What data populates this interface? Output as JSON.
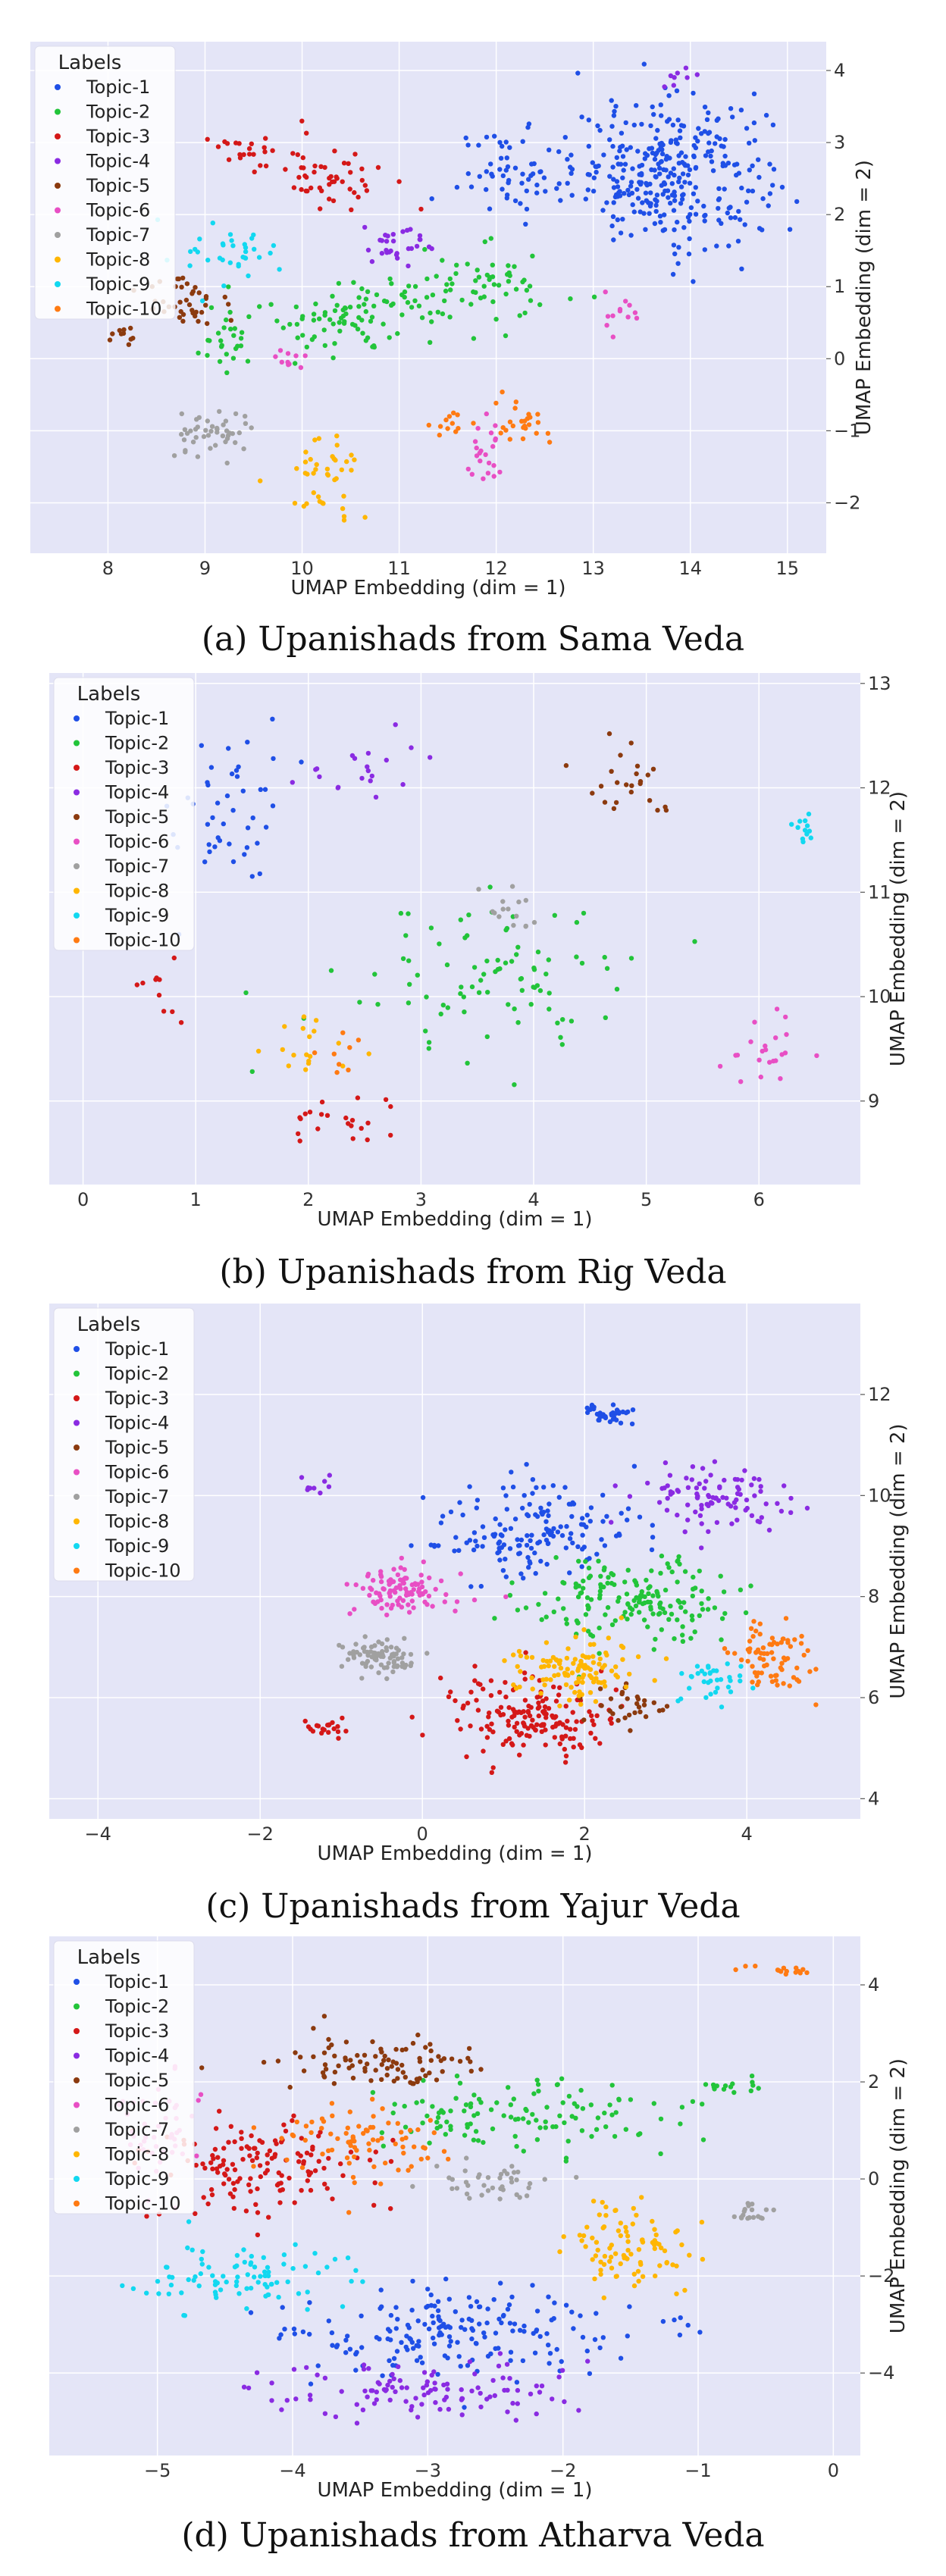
{
  "topic_colors": [
    "#1f4fe6",
    "#22c43a",
    "#d41818",
    "#8a2be2",
    "#8b3a0f",
    "#e84fc4",
    "#a0a0a0",
    "#ffb600",
    "#12d8f0",
    "#ff7a12"
  ],
  "chart_data": [
    {
      "type": "scatter",
      "xlabel": "UMAP Embedding (dim = 1)",
      "ylabel": "UMAP Embedding (dim = 2)",
      "xlim": [
        7.2,
        15.4
      ],
      "ylim": [
        -2.7,
        4.4
      ],
      "xticks": [
        8,
        9,
        10,
        11,
        12,
        13,
        14,
        15
      ],
      "yticks": [
        -2,
        -1,
        0,
        1,
        2,
        3,
        4
      ],
      "legend_title": "Labels",
      "legend": [
        "Topic-1",
        "Topic-2",
        "Topic-3",
        "Topic-4",
        "Topic-5",
        "Topic-6",
        "Topic-7",
        "Topic-8",
        "Topic-9",
        "Topic-10"
      ],
      "legend_position": "top-left",
      "grid": true,
      "clusters": [
        {
          "topic": 1,
          "cx": 13.8,
          "cy": 2.6,
          "rx": 1.0,
          "ry": 1.0,
          "n": 320
        },
        {
          "topic": 1,
          "cx": 12.2,
          "cy": 2.6,
          "rx": 0.6,
          "ry": 0.6,
          "n": 60
        },
        {
          "topic": 2,
          "cx": 11.8,
          "cy": 0.9,
          "rx": 0.9,
          "ry": 0.6,
          "n": 70
        },
        {
          "topic": 2,
          "cx": 10.4,
          "cy": 0.6,
          "rx": 0.8,
          "ry": 0.6,
          "n": 80
        },
        {
          "topic": 2,
          "cx": 9.2,
          "cy": 0.3,
          "rx": 0.4,
          "ry": 0.4,
          "n": 25
        },
        {
          "topic": 3,
          "cx": 10.2,
          "cy": 2.6,
          "rx": 0.7,
          "ry": 0.5,
          "n": 55
        },
        {
          "topic": 3,
          "cx": 9.3,
          "cy": 2.9,
          "rx": 0.3,
          "ry": 0.2,
          "n": 15
        },
        {
          "topic": 4,
          "cx": 11.0,
          "cy": 1.6,
          "rx": 0.4,
          "ry": 0.3,
          "n": 30
        },
        {
          "topic": 4,
          "cx": 13.9,
          "cy": 3.9,
          "rx": 0.3,
          "ry": 0.2,
          "n": 8
        },
        {
          "topic": 5,
          "cx": 8.8,
          "cy": 0.8,
          "rx": 0.5,
          "ry": 0.4,
          "n": 40
        },
        {
          "topic": 5,
          "cx": 8.2,
          "cy": 0.3,
          "rx": 0.2,
          "ry": 0.2,
          "n": 10
        },
        {
          "topic": 6,
          "cx": 11.9,
          "cy": -1.4,
          "rx": 0.2,
          "ry": 0.4,
          "n": 22
        },
        {
          "topic": 6,
          "cx": 13.3,
          "cy": 0.6,
          "rx": 0.2,
          "ry": 0.3,
          "n": 12
        },
        {
          "topic": 6,
          "cx": 9.8,
          "cy": 0.0,
          "rx": 0.3,
          "ry": 0.2,
          "n": 10
        },
        {
          "topic": 7,
          "cx": 9.1,
          "cy": -1.1,
          "rx": 0.4,
          "ry": 0.4,
          "n": 45
        },
        {
          "topic": 8,
          "cx": 10.2,
          "cy": -1.6,
          "rx": 0.4,
          "ry": 0.6,
          "n": 40
        },
        {
          "topic": 9,
          "cx": 9.3,
          "cy": 1.4,
          "rx": 0.5,
          "ry": 0.4,
          "n": 35
        },
        {
          "topic": 10,
          "cx": 12.3,
          "cy": -0.9,
          "rx": 0.3,
          "ry": 0.3,
          "n": 25
        },
        {
          "topic": 10,
          "cx": 11.5,
          "cy": -0.9,
          "rx": 0.2,
          "ry": 0.2,
          "n": 12
        }
      ]
    },
    {
      "type": "scatter",
      "xlabel": "UMAP Embedding (dim = 1)",
      "ylabel": "UMAP Embedding (dim = 2)",
      "xlim": [
        -0.3,
        6.9
      ],
      "ylim": [
        8.2,
        13.1
      ],
      "xticks": [
        0,
        1,
        2,
        3,
        4,
        5,
        6
      ],
      "yticks": [
        9,
        10,
        11,
        12,
        13
      ],
      "legend_title": "Labels",
      "legend": [
        "Topic-1",
        "Topic-2",
        "Topic-3",
        "Topic-4",
        "Topic-5",
        "Topic-6",
        "Topic-7",
        "Topic-8",
        "Topic-9",
        "Topic-10"
      ],
      "legend_position": "top-left",
      "grid": true,
      "clusters": [
        {
          "topic": 1,
          "cx": 1.3,
          "cy": 11.8,
          "rx": 0.5,
          "ry": 0.8,
          "n": 45
        },
        {
          "topic": 2,
          "cx": 3.6,
          "cy": 10.2,
          "rx": 1.3,
          "ry": 0.8,
          "n": 90
        },
        {
          "topic": 3,
          "cx": 2.3,
          "cy": 8.8,
          "rx": 0.5,
          "ry": 0.3,
          "n": 22
        },
        {
          "topic": 3,
          "cx": 0.7,
          "cy": 10.0,
          "rx": 0.2,
          "ry": 0.3,
          "n": 10
        },
        {
          "topic": 4,
          "cx": 2.4,
          "cy": 12.2,
          "rx": 0.6,
          "ry": 0.3,
          "n": 20
        },
        {
          "topic": 5,
          "cx": 4.8,
          "cy": 12.1,
          "rx": 0.5,
          "ry": 0.4,
          "n": 24
        },
        {
          "topic": 6,
          "cx": 6.1,
          "cy": 9.5,
          "rx": 0.4,
          "ry": 0.4,
          "n": 22
        },
        {
          "topic": 7,
          "cx": 3.7,
          "cy": 10.8,
          "rx": 0.4,
          "ry": 0.3,
          "n": 15
        },
        {
          "topic": 8,
          "cx": 2.0,
          "cy": 9.5,
          "rx": 0.4,
          "ry": 0.4,
          "n": 18
        },
        {
          "topic": 9,
          "cx": 6.4,
          "cy": 11.6,
          "rx": 0.2,
          "ry": 0.15,
          "n": 12
        },
        {
          "topic": 10,
          "cx": 2.3,
          "cy": 9.4,
          "rx": 0.3,
          "ry": 0.3,
          "n": 8
        }
      ]
    },
    {
      "type": "scatter",
      "xlabel": "UMAP Embedding (dim = 1)",
      "ylabel": "UMAP Embedding (dim = 2)",
      "xlim": [
        -4.6,
        5.4
      ],
      "ylim": [
        3.6,
        13.8
      ],
      "xticks": [
        -4,
        -2,
        0,
        2,
        4
      ],
      "yticks": [
        4,
        6,
        8,
        10,
        12
      ],
      "legend_title": "Labels",
      "legend": [
        "Topic-1",
        "Topic-2",
        "Topic-3",
        "Topic-4",
        "Topic-5",
        "Topic-6",
        "Topic-7",
        "Topic-8",
        "Topic-9",
        "Topic-10"
      ],
      "legend_position": "top-left",
      "grid": true,
      "clusters": [
        {
          "topic": 1,
          "cx": 1.4,
          "cy": 9.3,
          "rx": 1.3,
          "ry": 1.0,
          "n": 160
        },
        {
          "topic": 1,
          "cx": 2.3,
          "cy": 11.6,
          "rx": 0.3,
          "ry": 0.2,
          "n": 35
        },
        {
          "topic": 2,
          "cx": 2.6,
          "cy": 7.9,
          "rx": 1.3,
          "ry": 0.9,
          "n": 170
        },
        {
          "topic": 3,
          "cx": 1.3,
          "cy": 5.6,
          "rx": 1.0,
          "ry": 0.8,
          "n": 170
        },
        {
          "topic": 3,
          "cx": -1.2,
          "cy": 5.4,
          "rx": 0.3,
          "ry": 0.2,
          "n": 20
        },
        {
          "topic": 4,
          "cx": 3.5,
          "cy": 10.0,
          "rx": 1.0,
          "ry": 0.6,
          "n": 95
        },
        {
          "topic": 4,
          "cx": -1.4,
          "cy": 10.2,
          "rx": 0.3,
          "ry": 0.2,
          "n": 10
        },
        {
          "topic": 5,
          "cx": 2.5,
          "cy": 5.8,
          "rx": 0.5,
          "ry": 0.4,
          "n": 30
        },
        {
          "topic": 6,
          "cx": -0.2,
          "cy": 8.1,
          "rx": 0.6,
          "ry": 0.5,
          "n": 100
        },
        {
          "topic": 7,
          "cx": -0.5,
          "cy": 6.8,
          "rx": 0.5,
          "ry": 0.4,
          "n": 80
        },
        {
          "topic": 8,
          "cx": 1.9,
          "cy": 6.6,
          "rx": 0.8,
          "ry": 0.6,
          "n": 110
        },
        {
          "topic": 9,
          "cx": 3.5,
          "cy": 6.4,
          "rx": 0.4,
          "ry": 0.5,
          "n": 35
        },
        {
          "topic": 10,
          "cx": 4.3,
          "cy": 6.8,
          "rx": 0.5,
          "ry": 0.6,
          "n": 75
        }
      ]
    },
    {
      "type": "scatter",
      "xlabel": "UMAP Embedding (dim = 1)",
      "ylabel": "UMAP Embedding (dim = 2)",
      "xlim": [
        -5.8,
        0.2
      ],
      "ylim": [
        -5.7,
        5.0
      ],
      "xticks": [
        -5,
        -4,
        -3,
        -2,
        -1,
        0
      ],
      "yticks": [
        -4,
        -2,
        0,
        2,
        4
      ],
      "legend_title": "Labels",
      "legend": [
        "Topic-1",
        "Topic-2",
        "Topic-3",
        "Topic-4",
        "Topic-5",
        "Topic-6",
        "Topic-7",
        "Topic-8",
        "Topic-9",
        "Topic-10"
      ],
      "legend_position": "top-left",
      "grid": true,
      "clusters": [
        {
          "topic": 1,
          "cx": -2.8,
          "cy": -3.2,
          "rx": 1.3,
          "ry": 0.9,
          "n": 190
        },
        {
          "topic": 2,
          "cx": -2.3,
          "cy": 1.3,
          "rx": 1.1,
          "ry": 0.8,
          "n": 120
        },
        {
          "topic": 2,
          "cx": -0.8,
          "cy": 1.9,
          "rx": 0.3,
          "ry": 0.2,
          "n": 15
        },
        {
          "topic": 3,
          "cx": -4.2,
          "cy": 0.2,
          "rx": 0.8,
          "ry": 1.0,
          "n": 140
        },
        {
          "topic": 4,
          "cx": -3.1,
          "cy": -4.4,
          "rx": 1.1,
          "ry": 0.6,
          "n": 110
        },
        {
          "topic": 5,
          "cx": -3.4,
          "cy": 2.4,
          "rx": 0.8,
          "ry": 0.6,
          "n": 90
        },
        {
          "topic": 6,
          "cx": -5.0,
          "cy": 1.0,
          "rx": 0.3,
          "ry": 1.2,
          "n": 45
        },
        {
          "topic": 7,
          "cx": -2.6,
          "cy": -0.1,
          "rx": 0.5,
          "ry": 0.4,
          "n": 40
        },
        {
          "topic": 7,
          "cx": -0.6,
          "cy": -0.7,
          "rx": 0.2,
          "ry": 0.2,
          "n": 18
        },
        {
          "topic": 8,
          "cx": -1.5,
          "cy": -1.5,
          "rx": 0.5,
          "ry": 1.0,
          "n": 90
        },
        {
          "topic": 9,
          "cx": -4.5,
          "cy": -2.0,
          "rx": 0.8,
          "ry": 0.6,
          "n": 90
        },
        {
          "topic": 10,
          "cx": -3.5,
          "cy": 0.8,
          "rx": 0.7,
          "ry": 0.8,
          "n": 80
        },
        {
          "topic": 10,
          "cx": -0.4,
          "cy": 4.3,
          "rx": 0.3,
          "ry": 0.1,
          "n": 15
        }
      ]
    }
  ],
  "captions": [
    "(a) Upanishads from Sama Veda",
    "(b) Upanishads from Rig Veda",
    "(c) Upanishads from Yajur Veda",
    "(d) Upanishads from Atharva Veda"
  ]
}
